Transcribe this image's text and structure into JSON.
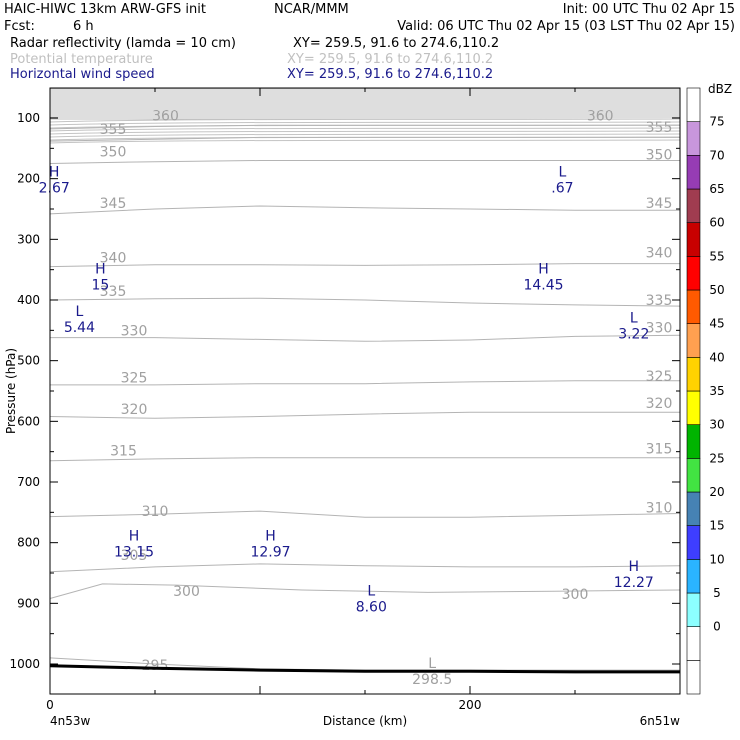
{
  "header": {
    "model": "HAIC-HIWC 13km ARW-GFS init",
    "org": "NCAR/MMM",
    "init": "Init: 00 UTC Thu 02 Apr 15",
    "fcst_label": "Fcst:",
    "fcst_value": "6 h",
    "valid": "Valid: 06 UTC Thu 02 Apr 15 (03 LST Thu 02 Apr 15)",
    "fields": [
      {
        "name": "Radar reflectivity (lamda = 10 cm)",
        "xy": "XY= 259.5, 91.6 to 274.6,110.2",
        "color": "#000000"
      },
      {
        "name": "Potential temperature",
        "xy": "XY= 259.5, 91.6 to 274.6,110.2",
        "color": "#c0c0c0"
      },
      {
        "name": "Horizontal wind speed",
        "xy": "XY= 259.5, 91.6 to 274.6,110.2",
        "color": "#1a1a8c"
      }
    ]
  },
  "chart_data": {
    "type": "line",
    "title": "",
    "xlabel": "Distance (km)",
    "ylabel": "Pressure (hPa)",
    "xlim": [
      0,
      300
    ],
    "ylim": [
      1050,
      50
    ],
    "x_ticks": [
      "0",
      "200"
    ],
    "x_tick_values": [
      0,
      200
    ],
    "y_ticks": [
      100,
      200,
      300,
      400,
      500,
      600,
      700,
      800,
      900,
      1000
    ],
    "x_end_labels": {
      "left": "4n53w",
      "right": "6n51w"
    },
    "theta_contours": [
      {
        "label": "295",
        "x": [
          0,
          50,
          100,
          150,
          200,
          250,
          300
        ],
        "p": [
          990,
          1000,
          1008,
          1010,
          1010,
          1010,
          1010
        ],
        "label_at": [
          [
            50,
            1002
          ]
        ]
      },
      {
        "label": "300",
        "x": [
          0,
          25,
          60,
          120,
          180,
          240,
          300
        ],
        "p": [
          892,
          868,
          870,
          878,
          882,
          880,
          878
        ],
        "label_at": [
          [
            65,
            880
          ],
          [
            250,
            885
          ]
        ]
      },
      {
        "label": "305",
        "x": [
          0,
          50,
          100,
          150,
          200,
          250,
          300
        ],
        "p": [
          848,
          840,
          835,
          838,
          840,
          840,
          838
        ],
        "label_at": [
          [
            40,
            820
          ]
        ]
      },
      {
        "label": "310",
        "x": [
          0,
          50,
          100,
          150,
          200,
          250,
          300
        ],
        "p": [
          757,
          753,
          748,
          758,
          758,
          755,
          752
        ],
        "label_at": [
          [
            50,
            748
          ],
          [
            290,
            742
          ]
        ]
      },
      {
        "label": "315",
        "x": [
          0,
          50,
          100,
          150,
          200,
          250,
          300
        ],
        "p": [
          665,
          662,
          660,
          660,
          660,
          660,
          660
        ],
        "label_at": [
          [
            35,
            648
          ],
          [
            290,
            645
          ]
        ]
      },
      {
        "label": "320",
        "x": [
          0,
          50,
          100,
          150,
          200,
          250,
          300
        ],
        "p": [
          592,
          595,
          592,
          588,
          585,
          585,
          585
        ],
        "label_at": [
          [
            40,
            580
          ],
          [
            290,
            570
          ]
        ]
      },
      {
        "label": "325",
        "x": [
          0,
          50,
          100,
          150,
          200,
          250,
          300
        ],
        "p": [
          540,
          540,
          538,
          538,
          535,
          533,
          533
        ],
        "label_at": [
          [
            40,
            528
          ],
          [
            290,
            525
          ]
        ]
      },
      {
        "label": "330",
        "x": [
          0,
          50,
          100,
          150,
          200,
          250,
          300
        ],
        "p": [
          462,
          462,
          465,
          468,
          466,
          460,
          458
        ],
        "label_at": [
          [
            40,
            450
          ],
          [
            290,
            445
          ]
        ]
      },
      {
        "label": "335",
        "x": [
          0,
          50,
          100,
          150,
          200,
          250,
          300
        ],
        "p": [
          400,
          398,
          397,
          400,
          405,
          408,
          410
        ],
        "label_at": [
          [
            30,
            385
          ],
          [
            290,
            400
          ]
        ]
      },
      {
        "label": "340",
        "x": [
          0,
          50,
          100,
          150,
          200,
          250,
          300
        ],
        "p": [
          345,
          342,
          342,
          343,
          342,
          340,
          340
        ],
        "label_at": [
          [
            30,
            330
          ],
          [
            290,
            322
          ]
        ]
      },
      {
        "label": "345",
        "x": [
          0,
          50,
          100,
          150,
          200,
          250,
          300
        ],
        "p": [
          258,
          250,
          245,
          248,
          250,
          252,
          252
        ],
        "label_at": [
          [
            30,
            240
          ],
          [
            290,
            240
          ]
        ]
      },
      {
        "label": "350",
        "x": [
          0,
          50,
          100,
          150,
          200,
          250,
          300
        ],
        "p": [
          175,
          172,
          170,
          170,
          170,
          170,
          170
        ],
        "label_at": [
          [
            30,
            155
          ],
          [
            290,
            160
          ]
        ]
      },
      {
        "label": "355",
        "x": [
          0,
          50,
          100,
          150,
          200,
          250,
          300
        ],
        "p": [
          138,
          135,
          132,
          132,
          132,
          132,
          132
        ],
        "label_at": [
          [
            30,
            118
          ],
          [
            290,
            115
          ]
        ]
      },
      {
        "label": "360",
        "x": [
          0,
          50,
          100,
          150,
          200,
          250,
          300
        ],
        "p": [
          118,
          114,
          112,
          112,
          112,
          112,
          112
        ],
        "label_at": [
          [
            55,
            96
          ],
          [
            262,
            96
          ]
        ]
      }
    ],
    "extrema": [
      {
        "type": "H",
        "value": "2.67",
        "x": 2,
        "p": 200,
        "color": "#1a1a8c"
      },
      {
        "type": "L",
        "value": ".67",
        "x": 244,
        "p": 200,
        "color": "#1a1a8c"
      },
      {
        "type": "H",
        "value": "15",
        "x": 24,
        "p": 360,
        "color": "#1a1a8c"
      },
      {
        "type": "H",
        "value": "14.45",
        "x": 235,
        "p": 360,
        "color": "#1a1a8c"
      },
      {
        "type": "L",
        "value": "5.44",
        "x": 14,
        "p": 430,
        "color": "#1a1a8c"
      },
      {
        "type": "L",
        "value": "3.22",
        "x": 278,
        "p": 440,
        "color": "#1a1a8c"
      },
      {
        "type": "H",
        "value": "13.15",
        "x": 40,
        "p": 800,
        "color": "#1a1a8c"
      },
      {
        "type": "H",
        "value": "12.97",
        "x": 105,
        "p": 800,
        "color": "#1a1a8c"
      },
      {
        "type": "L",
        "value": "8.60",
        "x": 153,
        "p": 890,
        "color": "#1a1a8c"
      },
      {
        "type": "H",
        "value": "12.27",
        "x": 278,
        "p": 850,
        "color": "#1a1a8c"
      },
      {
        "type": "L",
        "value": "298.5",
        "x": 182,
        "p": 1010,
        "color": "#a0a0a0"
      }
    ],
    "terrain": {
      "x": [
        0,
        50,
        100,
        150,
        200,
        250,
        300
      ],
      "p": [
        1003,
        1007,
        1010,
        1012,
        1012,
        1013,
        1013
      ]
    },
    "colorbar": {
      "title": "dBZ",
      "levels": [
        0,
        5,
        10,
        15,
        20,
        25,
        30,
        35,
        40,
        45,
        50,
        55,
        60,
        65,
        70,
        75
      ],
      "colors": [
        "#ffffff",
        "#ffffff",
        "#8cffff",
        "#2ab4ff",
        "#3e3eff",
        "#4682b4",
        "#42e342",
        "#00b400",
        "#ffff00",
        "#ffd200",
        "#ffa050",
        "#ff5a00",
        "#ff0000",
        "#c80000",
        "#a03c50",
        "#963cb4",
        "#c896dc",
        "#ffffff"
      ]
    }
  }
}
